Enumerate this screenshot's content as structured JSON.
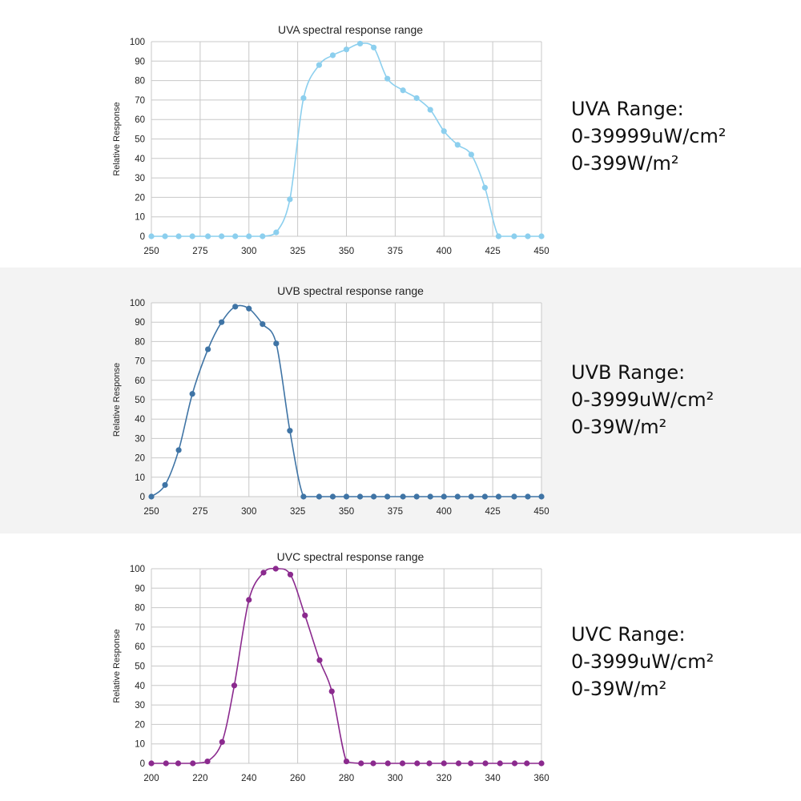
{
  "chart_data": [
    {
      "type": "line",
      "title": "UVA spectral response range",
      "xlabel": "",
      "ylabel": "Relative Response",
      "xlim": [
        250,
        450
      ],
      "ylim": [
        0,
        100
      ],
      "xticks": [
        250,
        275,
        300,
        325,
        350,
        375,
        400,
        425,
        450
      ],
      "yticks": [
        0,
        10,
        20,
        30,
        40,
        50,
        60,
        70,
        80,
        90,
        100
      ],
      "grid": true,
      "color": "#8ccfee",
      "series": [
        {
          "x": [
            250,
            257,
            264,
            271,
            279,
            286,
            293,
            300,
            307,
            314,
            321,
            328,
            336,
            343,
            350,
            357,
            364,
            371,
            379,
            386,
            393,
            400,
            407,
            414,
            421,
            428,
            436,
            443,
            450
          ],
          "values": [
            0,
            0,
            0,
            0,
            0,
            0,
            0,
            0,
            0,
            2,
            19,
            71,
            88,
            93,
            96,
            99,
            97,
            81,
            75,
            71,
            65,
            54,
            47,
            42,
            25,
            0,
            0,
            0,
            0
          ]
        }
      ]
    },
    {
      "type": "line",
      "title": "UVB spectral response range",
      "xlabel": "",
      "ylabel": "Relative Response",
      "xlim": [
        250,
        450
      ],
      "ylim": [
        0,
        100
      ],
      "xticks": [
        250,
        275,
        300,
        325,
        350,
        375,
        400,
        425,
        450
      ],
      "yticks": [
        0,
        10,
        20,
        30,
        40,
        50,
        60,
        70,
        80,
        90,
        100
      ],
      "grid": true,
      "color": "#3f74a5",
      "series": [
        {
          "x": [
            250,
            257,
            264,
            271,
            279,
            286,
            293,
            300,
            307,
            314,
            321,
            328,
            336,
            343,
            350,
            357,
            364,
            371,
            379,
            386,
            393,
            400,
            407,
            414,
            421,
            428,
            436,
            443,
            450
          ],
          "values": [
            0,
            6,
            24,
            53,
            76,
            90,
            98,
            97,
            89,
            79,
            34,
            0,
            0,
            0,
            0,
            0,
            0,
            0,
            0,
            0,
            0,
            0,
            0,
            0,
            0,
            0,
            0,
            0,
            0
          ]
        }
      ]
    },
    {
      "type": "line",
      "title": "UVC spectral response range",
      "xlabel": "",
      "ylabel": "Relative Response",
      "xlim": [
        200,
        360
      ],
      "ylim": [
        0,
        100
      ],
      "xticks": [
        200,
        220,
        240,
        260,
        280,
        300,
        320,
        340,
        360
      ],
      "yticks": [
        0,
        10,
        20,
        30,
        40,
        50,
        60,
        70,
        80,
        90,
        100
      ],
      "grid": true,
      "color": "#8b2a8e",
      "series": [
        {
          "x": [
            200,
            206,
            211,
            217,
            223,
            229,
            234,
            240,
            246,
            251,
            257,
            263,
            269,
            274,
            280,
            286,
            291,
            297,
            303,
            309,
            314,
            320,
            326,
            331,
            337,
            343,
            349,
            354,
            360
          ],
          "values": [
            0,
            0,
            0,
            0,
            1,
            11,
            40,
            84,
            98,
            100,
            97,
            76,
            53,
            37,
            1,
            0,
            0,
            0,
            0,
            0,
            0,
            0,
            0,
            0,
            0,
            0,
            0,
            0,
            0
          ]
        }
      ]
    }
  ],
  "ranges": [
    {
      "heading": "UVA Range:",
      "line1": "0-39999uW/cm²",
      "line2": "0-399W/m²"
    },
    {
      "heading": "UVB Range:",
      "line1": "0-3999uW/cm²",
      "line2": "0-39W/m²"
    },
    {
      "heading": "UVC Range:",
      "line1": "0-3999uW/cm²",
      "line2": "0-39W/m²"
    }
  ]
}
